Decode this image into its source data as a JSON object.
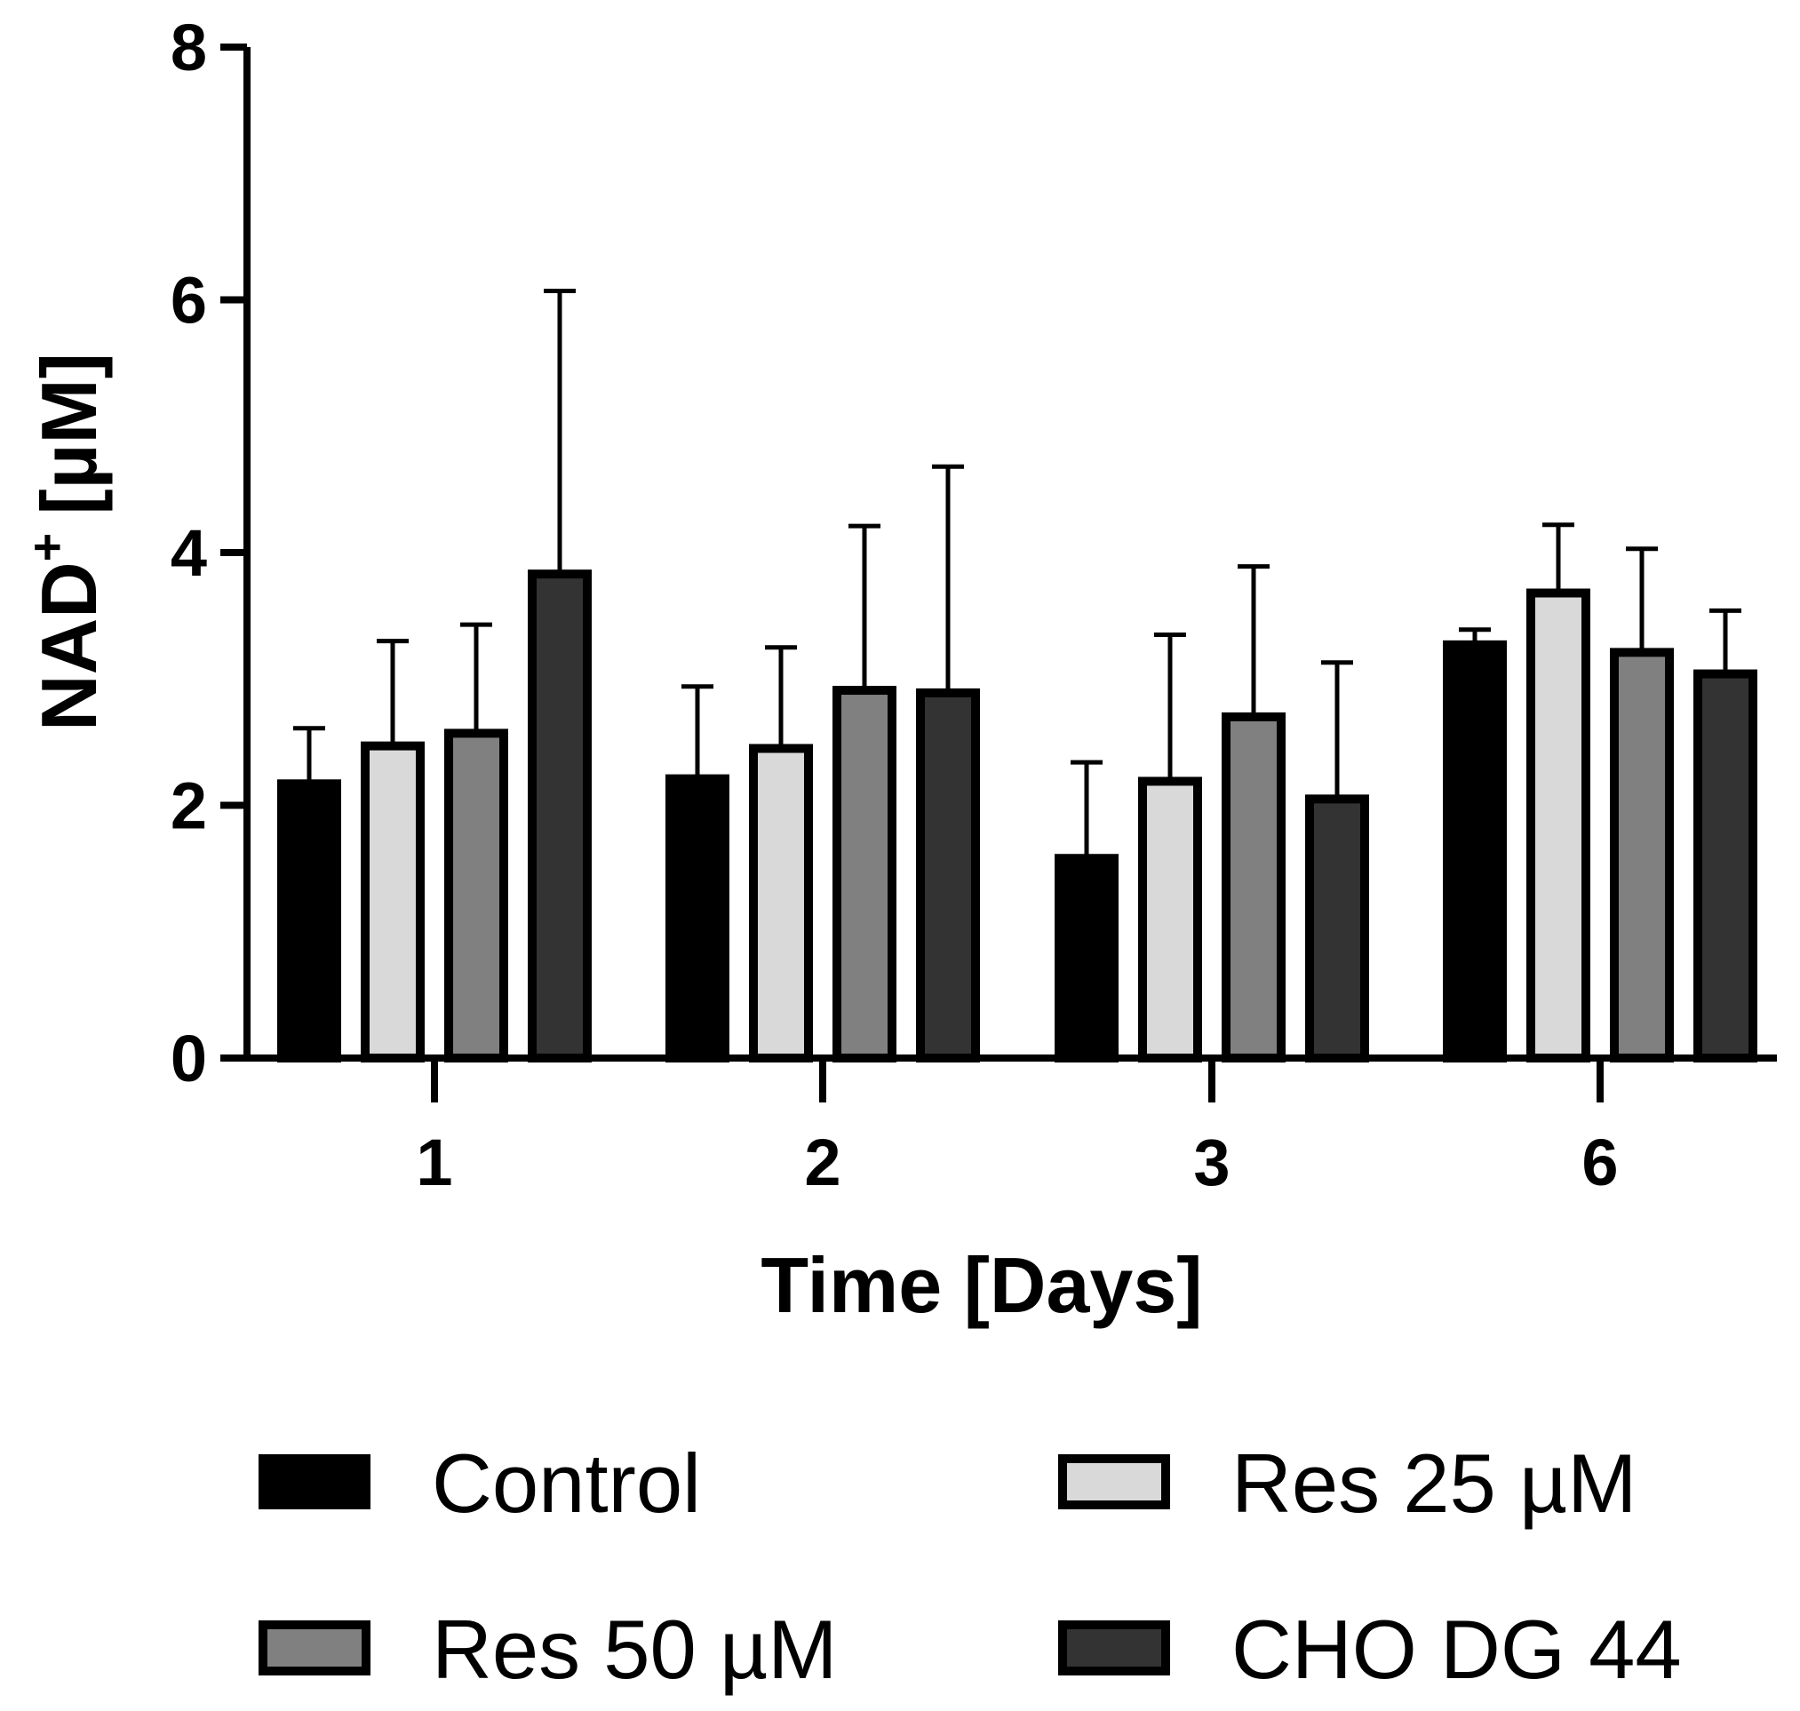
{
  "chart_data": {
    "type": "bar",
    "title": "",
    "xlabel": "Time [Days]",
    "ylabel_main": "NAD",
    "ylabel_sup": "+",
    "ylabel_unit": "[µM]",
    "ylim": [
      0,
      8
    ],
    "yticks": [
      "0",
      "2",
      "4",
      "6",
      "8"
    ],
    "categories": [
      "1",
      "2",
      "3",
      "6"
    ],
    "series": [
      {
        "name": "Control",
        "fill": "#000000",
        "values": [
          2.17,
          2.21,
          1.58,
          3.27
        ],
        "errors": [
          0.44,
          0.73,
          0.76,
          0.12
        ]
      },
      {
        "name": "Res 25 µM",
        "fill": "#d9d9d9",
        "values": [
          2.47,
          2.45,
          2.19,
          3.68
        ],
        "errors": [
          0.83,
          0.8,
          1.16,
          0.54
        ]
      },
      {
        "name": "Res 50 µM",
        "fill": "#808080",
        "values": [
          2.57,
          2.91,
          2.7,
          3.21
        ],
        "errors": [
          0.86,
          1.3,
          1.19,
          0.82
        ]
      },
      {
        "name": "CHO DG 44",
        "fill": "#333333",
        "values": [
          3.83,
          2.89,
          2.05,
          3.04
        ],
        "errors": [
          2.24,
          1.79,
          1.08,
          0.5
        ]
      }
    ],
    "legend": {
      "placement": "bottom",
      "rows": [
        [
          "Control",
          "Res 25 µM"
        ],
        [
          "Res 50 µM",
          "CHO DG 44"
        ]
      ]
    }
  }
}
